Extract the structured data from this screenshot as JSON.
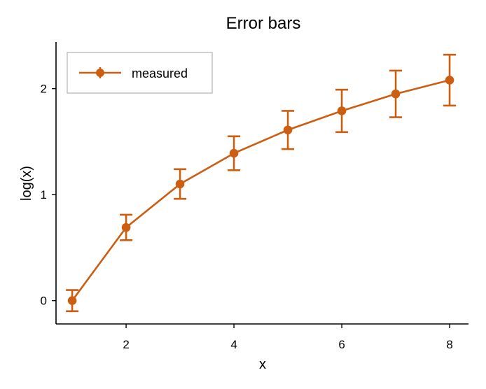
{
  "chart_data": {
    "type": "line",
    "title": "Error bars",
    "xlabel": "x",
    "ylabel": "log(x)",
    "xlim": [
      0.7,
      8.35
    ],
    "ylim": [
      -0.22,
      2.44
    ],
    "x_ticks": [
      2,
      4,
      6,
      8
    ],
    "y_ticks": [
      0,
      1,
      2
    ],
    "grid": false,
    "legend_position": "top-left",
    "series": [
      {
        "name": "measured",
        "color": "#cc5e12",
        "x": [
          1,
          2,
          3,
          4,
          5,
          6,
          7,
          8
        ],
        "y": [
          0.0,
          0.69,
          1.1,
          1.39,
          1.61,
          1.79,
          1.95,
          2.08
        ],
        "error": [
          0.1,
          0.12,
          0.14,
          0.16,
          0.18,
          0.2,
          0.22,
          0.24
        ]
      }
    ]
  }
}
